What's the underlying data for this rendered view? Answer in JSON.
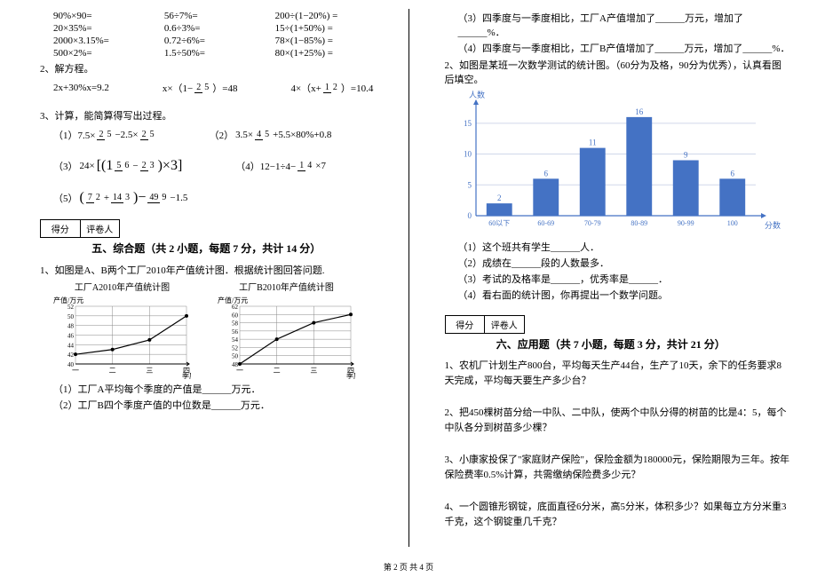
{
  "left": {
    "eq_rows": [
      [
        "90%×90=",
        "56÷7%=",
        "200÷(1−20%) ="
      ],
      [
        "20×35%=",
        "0.6÷3%=",
        "15÷(1+50%) ="
      ],
      [
        "2000×3.15%=",
        "0.72÷6%=",
        "78×(1−85%) ="
      ],
      [
        "500×2%=",
        "1.5÷50%=",
        "80×(1+25%) ="
      ]
    ],
    "q2_label": "2、解方程。",
    "q2_eq1": "2x+30%x=9.2",
    "q2_eq2_a": "x×（1−",
    "q2_eq2_frac": {
      "n": "2",
      "d": "5"
    },
    "q2_eq2_b": "）=48",
    "q2_eq3_a": "4×（x+",
    "q2_eq3_frac": {
      "n": "1",
      "d": "2"
    },
    "q2_eq3_b": "）=10.4",
    "q3_label": "3、计算，能简算得写出过程。",
    "q3_1_pre": "（1）7.5×",
    "q3_1_f1": {
      "n": "2",
      "d": "5"
    },
    "q3_1_mid": "−2.5×",
    "q3_1_f2": {
      "n": "2",
      "d": "5"
    },
    "q3_2_pre": "（2）",
    "q3_2_a": "3.5×",
    "q3_2_f1": {
      "n": "4",
      "d": "5"
    },
    "q3_2_b": "+5.5×80%+0.8",
    "q3_3_pre": "（3）",
    "q3_3_a": "24×",
    "q3_3_lb": "[(1",
    "q3_3_f1": {
      "n": "5",
      "d": "6"
    },
    "q3_3_mid": "−",
    "q3_3_f2": {
      "n": "2",
      "d": "3"
    },
    "q3_3_rb": ")×3]",
    "q3_4_pre": "（4）12−1÷4−",
    "q3_4_f1": {
      "n": "1",
      "d": "4"
    },
    "q3_4_b": "×7",
    "q3_5_pre": "（5）",
    "q3_5_lb": "(",
    "q3_5_f1": {
      "n": "7",
      "d": "2"
    },
    "q3_5_mid1": "+",
    "q3_5_f2": {
      "n": "14",
      "d": "3"
    },
    "q3_5_rb": ")−",
    "q3_5_f3": {
      "n": "49",
      "d": "9"
    },
    "q3_5_b": "−1.5",
    "score_labels": [
      "得分",
      "评卷人"
    ],
    "sect5_title": "五、综合题（共 2 小题，每题 7 分，共计 14 分）",
    "sect5_q1": "1、如图是A、B两个工厂2010年产值统计图．根据统计图回答问题.",
    "chartA": {
      "title": "工厂A2010年产值统计图",
      "y_label": "产值/万元",
      "x_label": "季度",
      "y_ticks": [
        "52",
        "50",
        "48",
        "46",
        "44",
        "42",
        "40"
      ],
      "x_ticks": [
        "一",
        "二",
        "三",
        "四"
      ],
      "points": [
        [
          0,
          42
        ],
        [
          1,
          43
        ],
        [
          2,
          45
        ],
        [
          3,
          50
        ]
      ],
      "y_min": 40,
      "y_max": 52,
      "line_color": "#000",
      "grid_color": "#888"
    },
    "chartB": {
      "title": "工厂B2010年产值统计图",
      "y_label": "产值/万元",
      "x_label": "季度",
      "y_ticks": [
        "62",
        "60",
        "58",
        "56",
        "54",
        "52",
        "50",
        "48"
      ],
      "x_ticks": [
        "一",
        "二",
        "三",
        "四"
      ],
      "points": [
        [
          0,
          48
        ],
        [
          1,
          54
        ],
        [
          2,
          58
        ],
        [
          3,
          60
        ]
      ],
      "y_min": 48,
      "y_max": 62,
      "line_color": "#000",
      "grid_color": "#888"
    },
    "sect5_sub1": "（1）工厂A平均每个季度的产值是______万元．",
    "sect5_sub2": "（2）工厂B四个季度产值的中位数是______万元．"
  },
  "right": {
    "sub3": "（3）四季度与一季度相比，工厂A产值增加了______万元，增加了______%．",
    "sub4": "（4）四季度与一季度相比，工厂B产值增加了______万元，增加了______%．",
    "q2_label": "2、如图是某班一次数学测试的统计图。（60分为及格，90分为优秀），认真看图后填空。",
    "bar_chart": {
      "y_label": "人数",
      "x_label": "分数",
      "y_ticks": [
        0,
        5,
        10,
        15
      ],
      "y_max": 18,
      "categories": [
        "60以下",
        "60-69",
        "70-79",
        "80-89",
        "90-99",
        "100"
      ],
      "values": [
        2,
        6,
        11,
        16,
        9,
        6
      ],
      "bar_color": "#4472c4",
      "value_color": "#4472c4",
      "axis_color": "#4472c4",
      "grid_color": "#d0d8ea",
      "bg_color": "#ffffff",
      "label_fontsize": 9
    },
    "bar_sub1": "（1）这个班共有学生______人．",
    "bar_sub2": "（2）成绩在______段的人数最多．",
    "bar_sub3": "（3）考试的及格率是______，优秀率是______．",
    "bar_sub4": "（4）看右面的统计图，你再提出一个数学问题。",
    "score_labels": [
      "得分",
      "评卷人"
    ],
    "sect6_title": "六、应用题（共 7 小题，每题 3 分，共计 21 分）",
    "app1": "1、农机厂计划生产800台，平均每天生产44台，生产了10天，余下的任务要求8天完成，平均每天要生产多少台？",
    "app2": "2、把450棵树苗分给一中队、二中队，使两个中队分得的树苗的比是4：5，每个中队各分到树苗多少棵？",
    "app3": "3、小康家投保了\"家庭财产保险\"，保险金额为180000元，保险期限为三年。按年保险费率0.5%计算，共需缴纳保险费多少元？",
    "app4": "4、一个圆锥形钢锭，底面直径6分米，高5分米，体积多少？如果每立方分米重3千克，这个钢锭重几千克？"
  },
  "footer": "第 2 页 共 4 页"
}
